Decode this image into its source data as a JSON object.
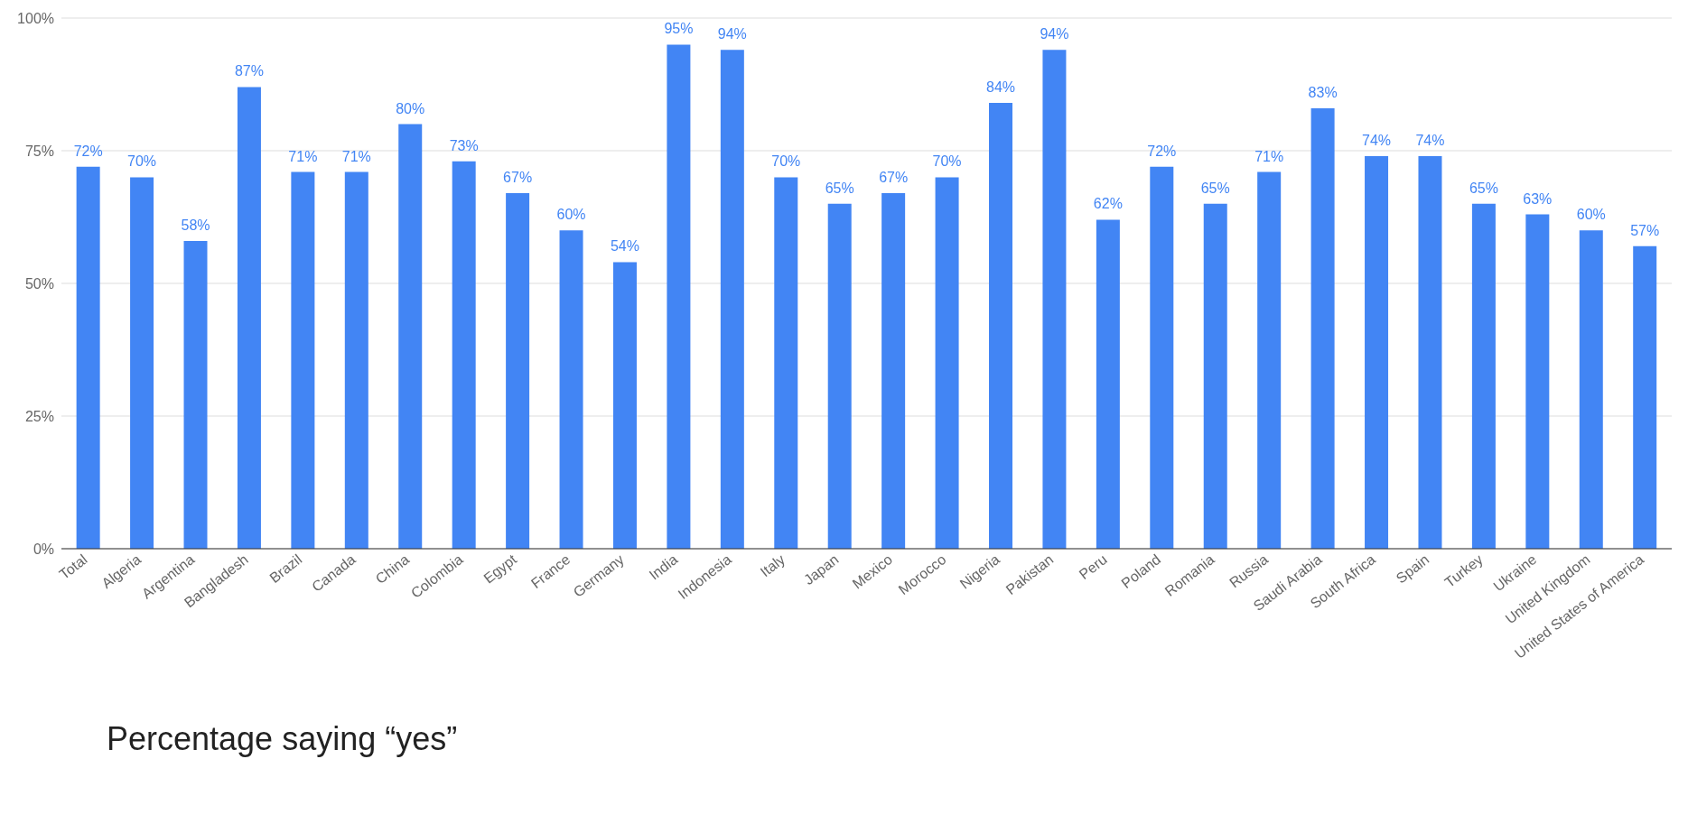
{
  "chart_data": {
    "type": "bar",
    "categories": [
      "Total",
      "Algeria",
      "Argentina",
      "Bangladesh",
      "Brazil",
      "Canada",
      "China",
      "Colombia",
      "Egypt",
      "France",
      "Germany",
      "India",
      "Indonesia",
      "Italy",
      "Japan",
      "Mexico",
      "Morocco",
      "Nigeria",
      "Pakistan",
      "Peru",
      "Poland",
      "Romania",
      "Russia",
      "Saudi Arabia",
      "South Africa",
      "Spain",
      "Turkey",
      "Ukraine",
      "United Kingdom",
      "United States of America"
    ],
    "values": [
      72,
      70,
      58,
      87,
      71,
      71,
      80,
      73,
      67,
      60,
      54,
      95,
      94,
      70,
      65,
      67,
      70,
      84,
      94,
      62,
      72,
      65,
      71,
      83,
      74,
      74,
      65,
      63,
      60,
      57
    ],
    "value_labels": [
      "72%",
      "70%",
      "58%",
      "87%",
      "71%",
      "71%",
      "80%",
      "73%",
      "67%",
      "60%",
      "54%",
      "95%",
      "94%",
      "70%",
      "65%",
      "67%",
      "70%",
      "84%",
      "94%",
      "62%",
      "72%",
      "65%",
      "71%",
      "83%",
      "74%",
      "74%",
      "65%",
      "63%",
      "60%",
      "57%"
    ],
    "color": "#4285f4",
    "ylim": [
      0,
      100
    ],
    "yticks": [
      {
        "value": 0,
        "label": "0%"
      },
      {
        "value": 25,
        "label": "25%"
      },
      {
        "value": 50,
        "label": "50%"
      },
      {
        "value": 75,
        "label": "75%"
      },
      {
        "value": 100,
        "label": "100%"
      }
    ],
    "grid": "y",
    "annotations": [
      "Percentage saying “yes”"
    ]
  }
}
